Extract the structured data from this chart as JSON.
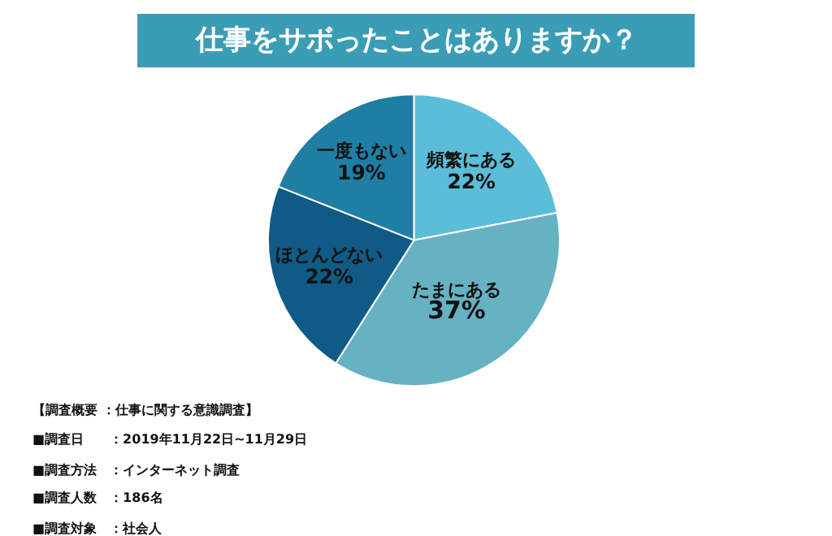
{
  "chart_data": {
    "type": "pie",
    "title": "仕事をサボったことはありますか？",
    "categories": [
      "頻繁にある",
      "たまにある",
      "ほとんどない",
      "一度もない"
    ],
    "values": [
      22,
      37,
      22,
      19
    ],
    "value_labels": [
      "22%",
      "37%",
      "22%",
      "19%"
    ],
    "colors": [
      "#5bbdd8",
      "#66b2c3",
      "#0f5b86",
      "#1f7ea3"
    ],
    "legend": false,
    "annotations": [
      "【調査概要 ：仕事に関する意識調査】",
      "■調査日　　：2019年11月22日~11月29日",
      "■調査方法　：インターネット調査",
      "■調査人数　：186名",
      "■調査対象　：社会人"
    ]
  }
}
